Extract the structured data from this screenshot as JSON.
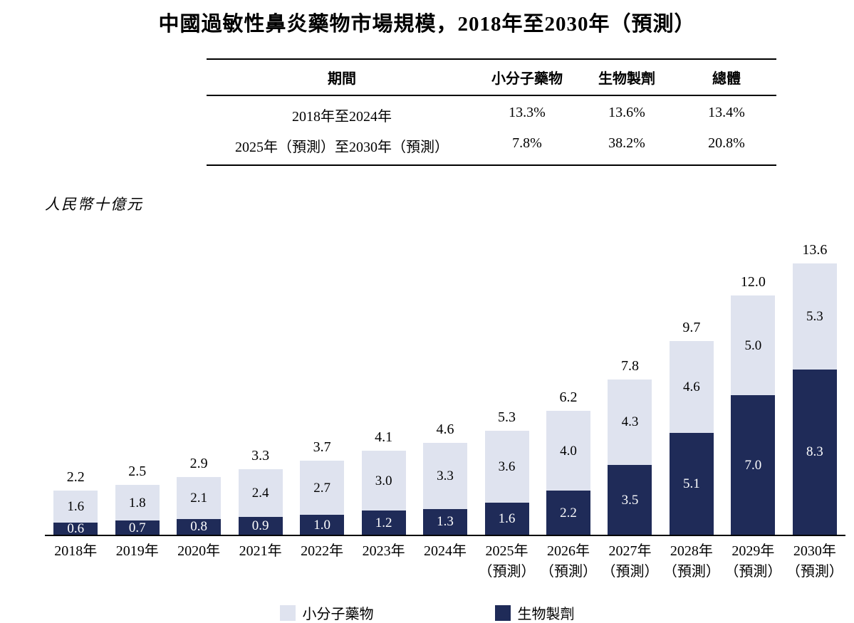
{
  "title": "中國過敏性鼻炎藥物市場規模，2018年至2030年（預測）",
  "table": {
    "headers": [
      "期間",
      "小分子藥物",
      "生物製劑",
      "總體"
    ],
    "rows": [
      [
        "2018年至2024年",
        "13.3%",
        "13.6%",
        "13.4%"
      ],
      [
        "2025年（預測）至2030年（預測）",
        "7.8%",
        "38.2%",
        "20.8%"
      ]
    ]
  },
  "chart_data": {
    "type": "bar",
    "stacked": true,
    "title": "中國過敏性鼻炎藥物市場規模，2018年至2030年（預測）",
    "ylabel": "人民幣十億元",
    "xlabel": "",
    "ylim": [
      0,
      14
    ],
    "grid": false,
    "legend_position": "bottom",
    "categories": [
      {
        "year": "2018年",
        "note": ""
      },
      {
        "year": "2019年",
        "note": ""
      },
      {
        "year": "2020年",
        "note": ""
      },
      {
        "year": "2021年",
        "note": ""
      },
      {
        "year": "2022年",
        "note": ""
      },
      {
        "year": "2023年",
        "note": ""
      },
      {
        "year": "2024年",
        "note": ""
      },
      {
        "year": "2025年",
        "note": "（預測）"
      },
      {
        "year": "2026年",
        "note": "（預測）"
      },
      {
        "year": "2027年",
        "note": "（預測）"
      },
      {
        "year": "2028年",
        "note": "（預測）"
      },
      {
        "year": "2029年",
        "note": "（預測）"
      },
      {
        "year": "2030年",
        "note": "（預測）"
      }
    ],
    "series": [
      {
        "name": "小分子藥物",
        "color": "#dfe3ef",
        "values": [
          1.6,
          1.8,
          2.1,
          2.4,
          2.7,
          3.0,
          3.3,
          3.6,
          4.0,
          4.3,
          4.6,
          5.0,
          5.3
        ]
      },
      {
        "name": "生物製劑",
        "color": "#1f2b58",
        "values": [
          0.6,
          0.7,
          0.8,
          0.9,
          1.0,
          1.2,
          1.3,
          1.6,
          2.2,
          3.5,
          5.1,
          7.0,
          8.3
        ]
      }
    ],
    "totals": [
      2.2,
      2.5,
      2.9,
      3.3,
      3.7,
      4.1,
      4.6,
      5.3,
      6.2,
      7.8,
      9.7,
      12.0,
      13.6
    ]
  }
}
